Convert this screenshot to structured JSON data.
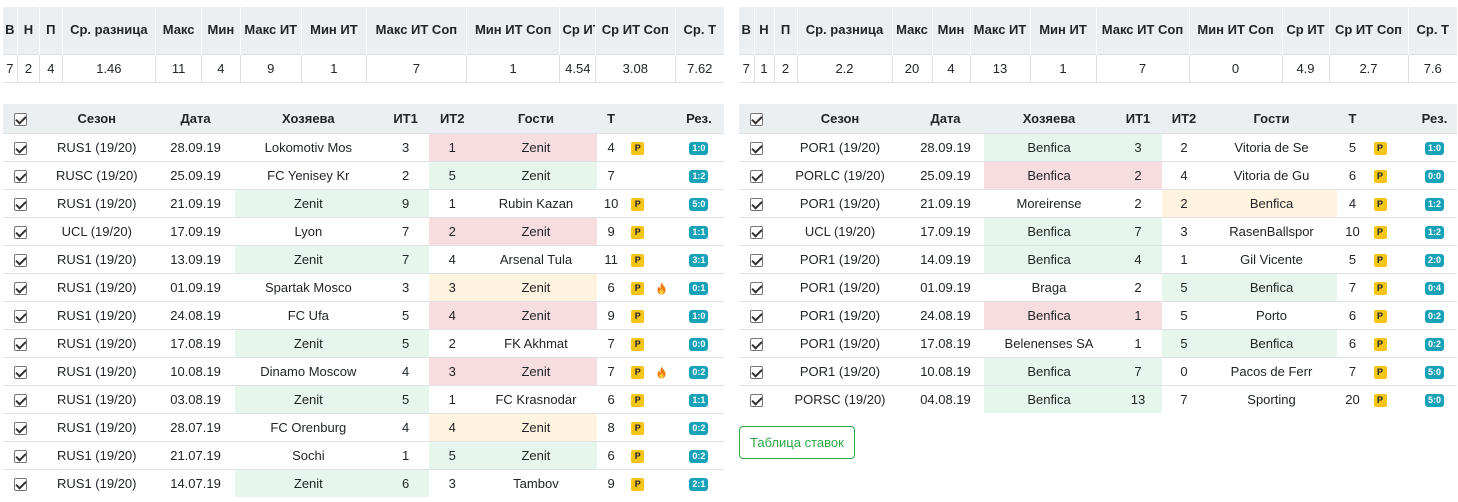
{
  "summary_headers": [
    "В",
    "Н",
    "П",
    "Ср. разница",
    "Макс",
    "Мин",
    "Макс ИТ",
    "Мин ИТ",
    "Макс ИТ Соп",
    "Мин ИТ Соп",
    "Ср ИТ",
    "Ср ИТ Соп",
    "Ср. Т"
  ],
  "match_headers": {
    "season": "Сезон",
    "date": "Дата",
    "home": "Хозяева",
    "it1": "ИТ1",
    "it2": "ИТ2",
    "away": "Гости",
    "t": "Т",
    "res": "Рез."
  },
  "left": {
    "summary": [
      "7",
      "2",
      "4",
      "1.46",
      "11",
      "4",
      "9",
      "1",
      "7",
      "1",
      "4.54",
      "3.08",
      "7.62"
    ],
    "matches": [
      {
        "season": "RUS1 (19/20)",
        "date": "28.09.19",
        "home": "Lokomotiv Mos",
        "it1": "3",
        "it2": "1",
        "away": "Zenit",
        "t": "4",
        "p": "P",
        "fire": false,
        "res": "1:0",
        "hl": "away",
        "hlc": "loss"
      },
      {
        "season": "RUSC (19/20)",
        "date": "25.09.19",
        "home": "FC Yenisey Kr",
        "it1": "2",
        "it2": "5",
        "away": "Zenit",
        "t": "7",
        "p": "",
        "fire": false,
        "res": "1:2",
        "hl": "away",
        "hlc": "win"
      },
      {
        "season": "RUS1 (19/20)",
        "date": "21.09.19",
        "home": "Zenit",
        "it1": "9",
        "it2": "1",
        "away": "Rubin Kazan",
        "t": "10",
        "p": "P",
        "fire": false,
        "res": "5:0",
        "hl": "home",
        "hlc": "win"
      },
      {
        "season": "UCL (19/20)",
        "date": "17.09.19",
        "home": "Lyon",
        "it1": "7",
        "it2": "2",
        "away": "Zenit",
        "t": "9",
        "p": "P",
        "fire": false,
        "res": "1:1",
        "hl": "away",
        "hlc": "loss"
      },
      {
        "season": "RUS1 (19/20)",
        "date": "13.09.19",
        "home": "Zenit",
        "it1": "7",
        "it2": "4",
        "away": "Arsenal Tula",
        "t": "11",
        "p": "P",
        "fire": false,
        "res": "3:1",
        "hl": "home",
        "hlc": "win"
      },
      {
        "season": "RUS1 (19/20)",
        "date": "01.09.19",
        "home": "Spartak Mosco",
        "it1": "3",
        "it2": "3",
        "away": "Zenit",
        "t": "6",
        "p": "P",
        "fire": true,
        "res": "0:1",
        "hl": "away",
        "hlc": "draw"
      },
      {
        "season": "RUS1 (19/20)",
        "date": "24.08.19",
        "home": "FC Ufa",
        "it1": "5",
        "it2": "4",
        "away": "Zenit",
        "t": "9",
        "p": "P",
        "fire": false,
        "res": "1:0",
        "hl": "away",
        "hlc": "loss"
      },
      {
        "season": "RUS1 (19/20)",
        "date": "17.08.19",
        "home": "Zenit",
        "it1": "5",
        "it2": "2",
        "away": "FK Akhmat",
        "t": "7",
        "p": "P",
        "fire": false,
        "res": "0:0",
        "hl": "home",
        "hlc": "win"
      },
      {
        "season": "RUS1 (19/20)",
        "date": "10.08.19",
        "home": "Dinamo Moscow",
        "it1": "4",
        "it2": "3",
        "away": "Zenit",
        "t": "7",
        "p": "P",
        "fire": true,
        "res": "0:2",
        "hl": "away",
        "hlc": "loss"
      },
      {
        "season": "RUS1 (19/20)",
        "date": "03.08.19",
        "home": "Zenit",
        "it1": "5",
        "it2": "1",
        "away": "FC Krasnodar",
        "t": "6",
        "p": "P",
        "fire": false,
        "res": "1:1",
        "hl": "home",
        "hlc": "win"
      },
      {
        "season": "RUS1 (19/20)",
        "date": "28.07.19",
        "home": "FC Orenburg",
        "it1": "4",
        "it2": "4",
        "away": "Zenit",
        "t": "8",
        "p": "P",
        "fire": false,
        "res": "0:2",
        "hl": "away",
        "hlc": "draw"
      },
      {
        "season": "RUS1 (19/20)",
        "date": "21.07.19",
        "home": "Sochi",
        "it1": "1",
        "it2": "5",
        "away": "Zenit",
        "t": "6",
        "p": "P",
        "fire": false,
        "res": "0:2",
        "hl": "away",
        "hlc": "win"
      },
      {
        "season": "RUS1 (19/20)",
        "date": "14.07.19",
        "home": "Zenit",
        "it1": "6",
        "it2": "3",
        "away": "Tambov",
        "t": "9",
        "p": "P",
        "fire": false,
        "res": "2:1",
        "hl": "home",
        "hlc": "win"
      }
    ]
  },
  "right": {
    "summary": [
      "7",
      "1",
      "2",
      "2.2",
      "20",
      "4",
      "13",
      "1",
      "7",
      "0",
      "4.9",
      "2.7",
      "7.6"
    ],
    "matches": [
      {
        "season": "POR1 (19/20)",
        "date": "28.09.19",
        "home": "Benfica",
        "it1": "3",
        "it2": "2",
        "away": "Vitoria de Se",
        "t": "5",
        "p": "P",
        "fire": false,
        "res": "1:0",
        "hl": "home",
        "hlc": "win"
      },
      {
        "season": "PORLC (19/20)",
        "date": "25.09.19",
        "home": "Benfica",
        "it1": "2",
        "it2": "4",
        "away": "Vitoria de Gu",
        "t": "6",
        "p": "P",
        "fire": false,
        "res": "0:0",
        "hl": "home",
        "hlc": "loss"
      },
      {
        "season": "POR1 (19/20)",
        "date": "21.09.19",
        "home": "Moreirense",
        "it1": "2",
        "it2": "2",
        "away": "Benfica",
        "t": "4",
        "p": "P",
        "fire": false,
        "res": "1:2",
        "hl": "away",
        "hlc": "draw"
      },
      {
        "season": "UCL (19/20)",
        "date": "17.09.19",
        "home": "Benfica",
        "it1": "7",
        "it2": "3",
        "away": "RasenBallspor",
        "t": "10",
        "p": "P",
        "fire": false,
        "res": "1:2",
        "hl": "home",
        "hlc": "win"
      },
      {
        "season": "POR1 (19/20)",
        "date": "14.09.19",
        "home": "Benfica",
        "it1": "4",
        "it2": "1",
        "away": "Gil Vicente",
        "t": "5",
        "p": "P",
        "fire": false,
        "res": "2:0",
        "hl": "home",
        "hlc": "win"
      },
      {
        "season": "POR1 (19/20)",
        "date": "01.09.19",
        "home": "Braga",
        "it1": "2",
        "it2": "5",
        "away": "Benfica",
        "t": "7",
        "p": "P",
        "fire": false,
        "res": "0:4",
        "hl": "away",
        "hlc": "win"
      },
      {
        "season": "POR1 (19/20)",
        "date": "24.08.19",
        "home": "Benfica",
        "it1": "1",
        "it2": "5",
        "away": "Porto",
        "t": "6",
        "p": "P",
        "fire": false,
        "res": "0:2",
        "hl": "home",
        "hlc": "loss"
      },
      {
        "season": "POR1 (19/20)",
        "date": "17.08.19",
        "home": "Belenenses SA",
        "it1": "1",
        "it2": "5",
        "away": "Benfica",
        "t": "6",
        "p": "P",
        "fire": false,
        "res": "0:2",
        "hl": "away",
        "hlc": "win"
      },
      {
        "season": "POR1 (19/20)",
        "date": "10.08.19",
        "home": "Benfica",
        "it1": "7",
        "it2": "0",
        "away": "Pacos de Ferr",
        "t": "7",
        "p": "P",
        "fire": false,
        "res": "5:0",
        "hl": "home",
        "hlc": "win"
      },
      {
        "season": "PORSC (19/20)",
        "date": "04.08.19",
        "home": "Benfica",
        "it1": "13",
        "it2": "7",
        "away": "Sporting",
        "t": "20",
        "p": "P",
        "fire": false,
        "res": "5:0",
        "hl": "home",
        "hlc": "win"
      }
    ]
  },
  "bets_button_label": "Таблица ставок",
  "colors": {
    "win": "#e6f6ec",
    "loss": "#f8dde0",
    "draw": "#fdf3df",
    "badge_p": "#f5c518",
    "badge_res": "#17a2b8",
    "button": "#28a745"
  }
}
